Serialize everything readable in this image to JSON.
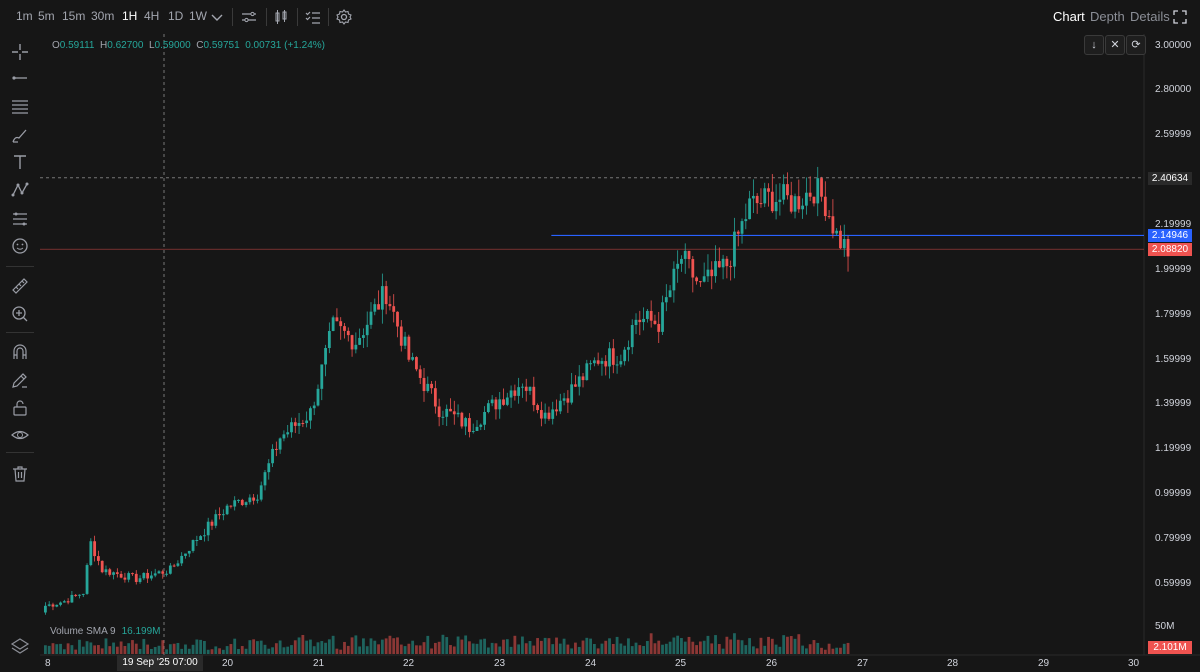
{
  "toolbar": {
    "timeframes": [
      "1m",
      "5m",
      "15m",
      "30m",
      "1H",
      "4H",
      "1D",
      "1W"
    ],
    "active_timeframe": "1H",
    "right_tabs": [
      "Chart",
      "Depth",
      "Details"
    ],
    "active_tab": "Chart"
  },
  "ohlc": {
    "o_label": "O",
    "o": "0.59111",
    "h_label": "H",
    "h": "0.62700",
    "l_label": "L",
    "l": "0.59000",
    "c_label": "C",
    "c": "0.59751",
    "change": "0.00731 (+1.24%)"
  },
  "volume": {
    "label": "Volume SMA 9",
    "value": "16.199M",
    "scale_label": "50M",
    "current": "2.101M"
  },
  "price_axis": {
    "ticks": [
      "3.00000",
      "2.80000",
      "2.59999",
      "2.19999",
      "1.99999",
      "1.79999",
      "1.59999",
      "1.39999",
      "1.19999",
      "0.99999",
      "0.79999",
      "0.59999"
    ],
    "crosshair_price": "2.40634",
    "line_price": "2.14946",
    "last_price": "2.08820"
  },
  "date_axis": {
    "labels": [
      "8",
      "20",
      "21",
      "22",
      "23",
      "24",
      "25",
      "26",
      "27",
      "28",
      "29",
      "30"
    ],
    "crosshair_date": "19 Sep '25   07:00"
  },
  "colors": {
    "up": "#26a69a",
    "down": "#ef5350",
    "line": "#2962ff",
    "background": "#161616"
  },
  "chart_data": {
    "type": "candlestick",
    "ylim": [
      0.45,
      3.05
    ],
    "keypoints": [
      {
        "t": 0,
        "close": 0.5
      },
      {
        "t": 5,
        "close": 0.52
      },
      {
        "t": 10,
        "close": 0.56
      },
      {
        "t": 12,
        "close": 0.78
      },
      {
        "t": 15,
        "close": 0.66
      },
      {
        "t": 24,
        "close": 0.62
      },
      {
        "t": 33,
        "close": 0.66
      },
      {
        "t": 40,
        "close": 0.8
      },
      {
        "t": 48,
        "close": 0.94
      },
      {
        "t": 56,
        "close": 1.0
      },
      {
        "t": 62,
        "close": 1.25
      },
      {
        "t": 70,
        "close": 1.36
      },
      {
        "t": 76,
        "close": 1.74
      },
      {
        "t": 82,
        "close": 1.68
      },
      {
        "t": 90,
        "close": 1.9
      },
      {
        "t": 96,
        "close": 1.6
      },
      {
        "t": 104,
        "close": 1.38
      },
      {
        "t": 112,
        "close": 1.3
      },
      {
        "t": 120,
        "close": 1.42
      },
      {
        "t": 126,
        "close": 1.5
      },
      {
        "t": 132,
        "close": 1.35
      },
      {
        "t": 140,
        "close": 1.48
      },
      {
        "t": 146,
        "close": 1.6
      },
      {
        "t": 152,
        "close": 1.62
      },
      {
        "t": 156,
        "close": 1.78
      },
      {
        "t": 162,
        "close": 1.76
      },
      {
        "t": 168,
        "close": 2.05
      },
      {
        "t": 173,
        "close": 1.92
      },
      {
        "t": 180,
        "close": 2.02
      },
      {
        "t": 186,
        "close": 2.28
      },
      {
        "t": 192,
        "close": 2.32
      },
      {
        "t": 198,
        "close": 2.3
      },
      {
        "t": 203,
        "close": 2.36
      },
      {
        "t": 206,
        "close": 2.3
      },
      {
        "t": 209,
        "close": 2.15
      },
      {
        "t": 212,
        "close": 2.08
      }
    ],
    "candles_count": 213,
    "crosshair_price": 2.40634,
    "horizontal_line": 2.14946,
    "last_price": 2.0882
  }
}
